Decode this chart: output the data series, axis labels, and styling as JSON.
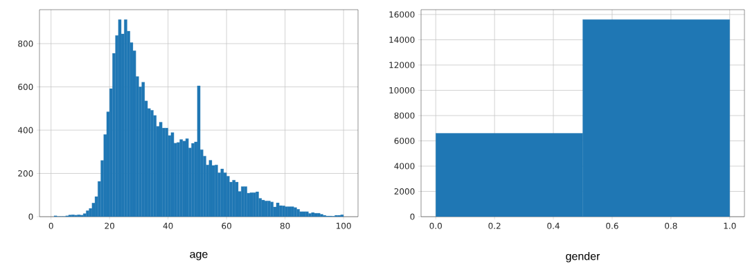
{
  "chart_data": [
    {
      "type": "histogram",
      "xlabel": "age",
      "color": "#1f77b4",
      "grid": true,
      "bins": [
        1,
        2,
        3,
        4,
        5,
        6,
        7,
        8,
        9,
        10,
        11,
        12,
        13,
        14,
        15,
        16,
        17,
        18,
        19,
        20,
        21,
        22,
        23,
        24,
        25,
        26,
        27,
        28,
        29,
        30,
        31,
        32,
        33,
        34,
        35,
        36,
        37,
        38,
        39,
        40,
        41,
        42,
        43,
        44,
        45,
        46,
        47,
        48,
        49,
        50,
        51,
        52,
        53,
        54,
        55,
        56,
        57,
        58,
        59,
        60,
        61,
        62,
        63,
        64,
        65,
        66,
        67,
        68,
        69,
        70,
        71,
        72,
        73,
        74,
        75,
        76,
        77,
        78,
        79,
        80,
        81,
        82,
        83,
        84,
        85,
        86,
        87,
        88,
        89,
        90,
        91,
        92,
        93,
        94,
        95,
        96,
        97,
        98,
        99,
        100
      ],
      "values": [
        4,
        1,
        1,
        1,
        4,
        8,
        9,
        7,
        9,
        7,
        14,
        28,
        38,
        63,
        93,
        163,
        260,
        380,
        485,
        592,
        755,
        838,
        911,
        845,
        911,
        858,
        805,
        767,
        648,
        600,
        622,
        535,
        500,
        492,
        468,
        418,
        437,
        410,
        410,
        375,
        389,
        340,
        343,
        357,
        350,
        361,
        318,
        339,
        346,
        605,
        310,
        280,
        239,
        261,
        237,
        239,
        203,
        221,
        203,
        187,
        160,
        169,
        160,
        117,
        139,
        139,
        109,
        111,
        111,
        115,
        85,
        77,
        73,
        73,
        68,
        45,
        64,
        51,
        50,
        46,
        46,
        46,
        42,
        34,
        23,
        23,
        23,
        15,
        19,
        16,
        16,
        11,
        6,
        3,
        3,
        2,
        6,
        6,
        9
      ],
      "xlim": [
        -3.95,
        104.95
      ],
      "ylim": [
        0,
        957
      ],
      "xticks": [
        0,
        20,
        40,
        60,
        80,
        100
      ],
      "yticks": [
        0,
        200,
        400,
        600,
        800
      ]
    },
    {
      "type": "histogram",
      "xlabel": "gender",
      "color": "#1f77b4",
      "grid": true,
      "bins": [
        0,
        0.5,
        1
      ],
      "values": [
        6600,
        15600
      ],
      "xlim": [
        -0.05,
        1.05
      ],
      "ylim": [
        0,
        16380
      ],
      "xticks": [
        {
          "value": 0,
          "label": "0.0"
        },
        {
          "value": 0.2,
          "label": "0.2"
        },
        {
          "value": 0.4,
          "label": "0.4"
        },
        {
          "value": 0.6,
          "label": "0.6"
        },
        {
          "value": 0.8,
          "label": "0.8"
        },
        {
          "value": 1,
          "label": "1.0"
        }
      ],
      "yticks": [
        0,
        2000,
        4000,
        6000,
        8000,
        10000,
        12000,
        14000,
        16000
      ]
    }
  ]
}
